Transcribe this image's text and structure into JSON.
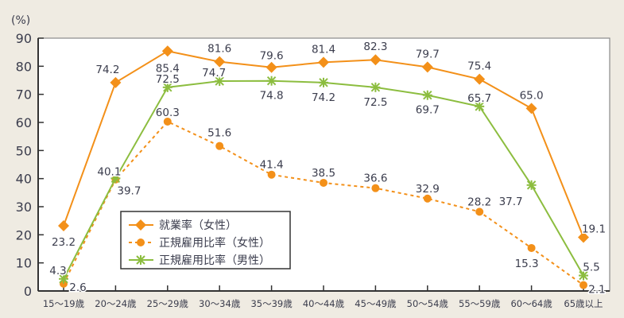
{
  "chart_data": {
    "type": "line",
    "ylabel": "(%)",
    "ylim": [
      0,
      90
    ],
    "yticks": [
      0,
      10,
      20,
      30,
      40,
      50,
      60,
      70,
      80,
      90
    ],
    "grid": false,
    "legend_position": "bottom-left",
    "categories": [
      "15～19歳",
      "20～24歳",
      "25～29歳",
      "30～34歳",
      "35～39歳",
      "40～44歳",
      "45～49歳",
      "50～54歳",
      "55～59歳",
      "60～64歳",
      "65歳以上"
    ],
    "series": [
      {
        "name": "就業率（女性）",
        "color": "#f39019",
        "marker": "diamond",
        "dash": false,
        "values": [
          23.2,
          74.2,
          85.4,
          81.6,
          79.6,
          81.4,
          82.3,
          79.7,
          75.4,
          65.0,
          19.1
        ],
        "labels": [
          "23.2",
          "74.2",
          "85.4",
          "81.6",
          "79.6",
          "81.4",
          "82.3",
          "79.7",
          "75.4",
          "65.0",
          "19.1"
        ]
      },
      {
        "name": "正規雇用比率（女性）",
        "color": "#f39019",
        "marker": "circle",
        "dash": true,
        "values": [
          2.6,
          39.7,
          60.3,
          51.6,
          41.4,
          38.5,
          36.6,
          32.9,
          28.2,
          15.3,
          2.1
        ],
        "labels": [
          "2.6",
          "39.7",
          "60.3",
          "51.6",
          "41.4",
          "38.5",
          "36.6",
          "32.9",
          "28.2",
          "15.3",
          "2.1"
        ]
      },
      {
        "name": "正規雇用比率（男性）",
        "color": "#8cbd3f",
        "marker": "asterisk",
        "dash": false,
        "values": [
          4.3,
          40.1,
          72.5,
          74.7,
          74.8,
          74.2,
          72.5,
          69.7,
          65.7,
          37.7,
          5.5
        ],
        "labels": [
          "4.3",
          "40.1",
          "72.5",
          "74.7",
          "74.8",
          "74.2",
          "72.5",
          "69.7",
          "65.7",
          "37.7",
          "5.5"
        ]
      }
    ]
  }
}
